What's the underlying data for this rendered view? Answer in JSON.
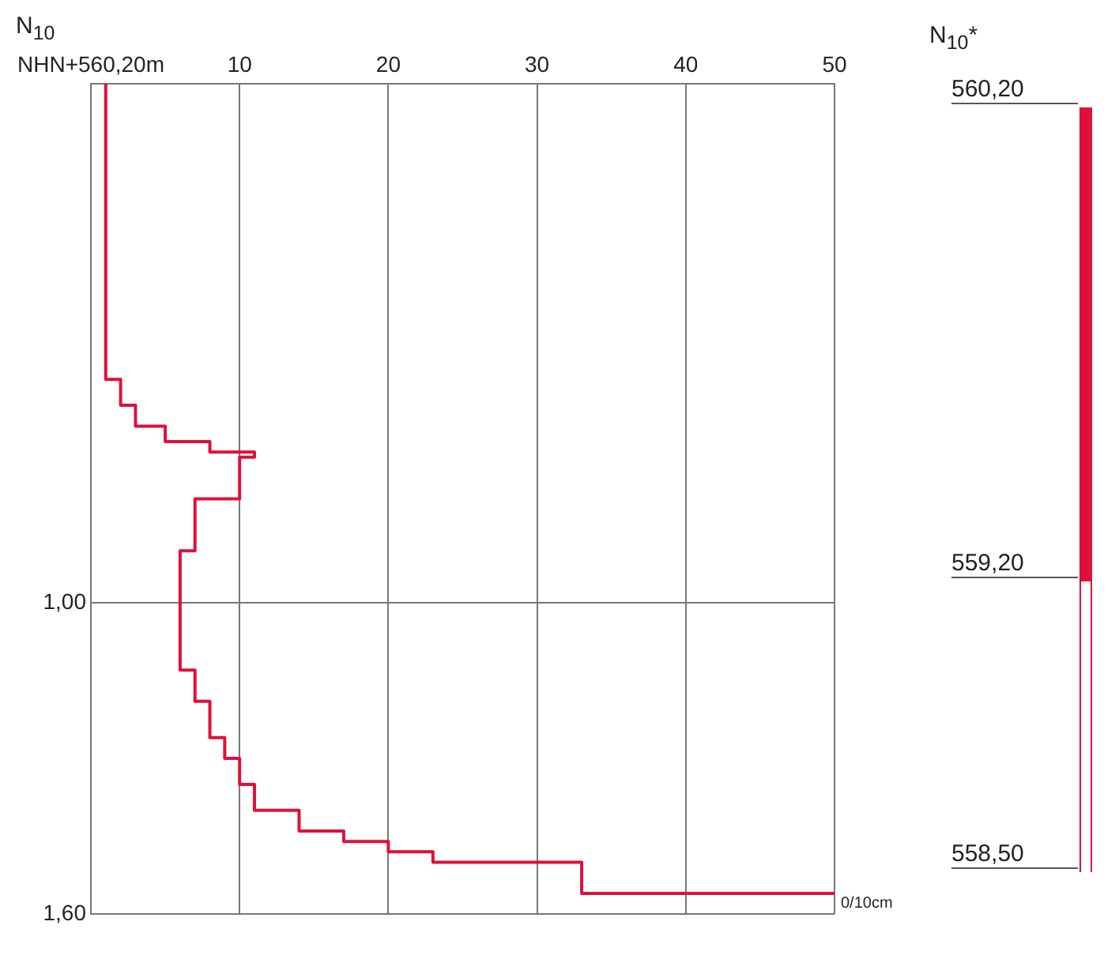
{
  "chart_data": [
    {
      "type": "step",
      "orientation": "horizontal",
      "xlabel": "N$_{10}$",
      "x": [
        0,
        0.57,
        0.62,
        0.66,
        0.69,
        0.71,
        0.72,
        0.8,
        0.9,
        1.13,
        1.19,
        1.26,
        1.3,
        1.35,
        1.4,
        1.44,
        1.46,
        1.48,
        1.5,
        1.56
      ],
      "series": [
        {
          "color": "#e0103a",
          "values": [
            1,
            2,
            3,
            5,
            8,
            11,
            10,
            7,
            6,
            7,
            8,
            9,
            10,
            11,
            14,
            17,
            20,
            23,
            33,
            50
          ]
        }
      ],
      "xlim": [
        0,
        50
      ],
      "xticks": [
        {
          "value": 0,
          "label": "NHN+560,20m"
        },
        10,
        20,
        30,
        40,
        50
      ],
      "ylim": [
        1.6,
        0
      ],
      "yticks": [
        {
          "value": 1,
          "label": "1,00"
        },
        {
          "value": 1.6,
          "label": "1,60"
        }
      ],
      "grid": true,
      "legend": false,
      "annotations": [
        "0/10cm"
      ]
    },
    {
      "type": "other",
      "title": "N$_{10}$*",
      "categories": [
        "560,20",
        "559,20",
        "558,50"
      ]
    }
  ]
}
